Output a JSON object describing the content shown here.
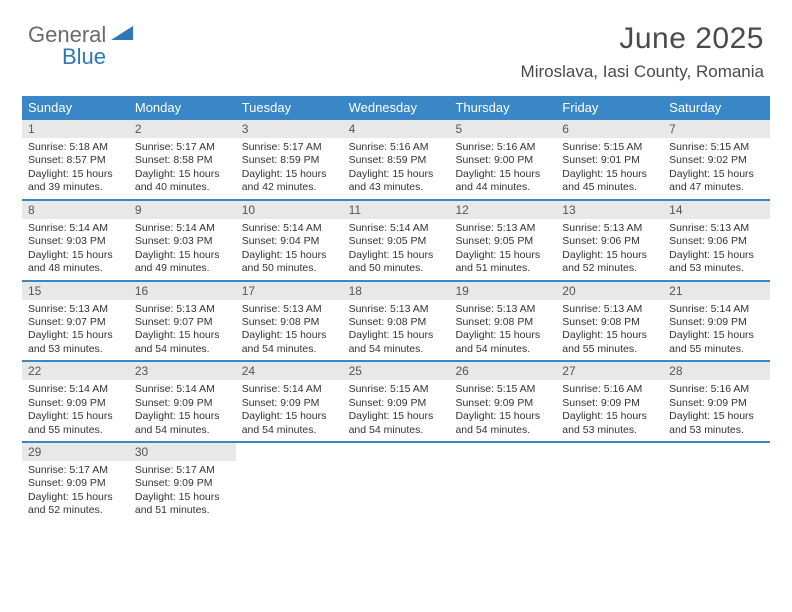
{
  "brand": {
    "word1": "General",
    "word2": "Blue"
  },
  "title": "June 2025",
  "location": "Miroslava, Iasi County, Romania",
  "colors": {
    "header_bar": "#3a87c8",
    "header_text": "#ffffff",
    "daynum_bg": "#e8e8e8",
    "daynum_text": "#555555",
    "body_text": "#333333",
    "rule": "#3a87c8",
    "logo_gray": "#6b6b6b",
    "logo_blue": "#2f77bb",
    "title_color": "#4a4a4a",
    "page_bg": "#ffffff"
  },
  "fonts": {
    "title_size_pt": 22,
    "location_size_pt": 13,
    "weekday_size_pt": 10,
    "daynum_size_pt": 9,
    "body_size_pt": 8
  },
  "weekdays": [
    "Sunday",
    "Monday",
    "Tuesday",
    "Wednesday",
    "Thursday",
    "Friday",
    "Saturday"
  ],
  "weeks": [
    [
      {
        "n": "1",
        "sr": "5:18 AM",
        "ss": "8:57 PM",
        "dl": "15 hours and 39 minutes."
      },
      {
        "n": "2",
        "sr": "5:17 AM",
        "ss": "8:58 PM",
        "dl": "15 hours and 40 minutes."
      },
      {
        "n": "3",
        "sr": "5:17 AM",
        "ss": "8:59 PM",
        "dl": "15 hours and 42 minutes."
      },
      {
        "n": "4",
        "sr": "5:16 AM",
        "ss": "8:59 PM",
        "dl": "15 hours and 43 minutes."
      },
      {
        "n": "5",
        "sr": "5:16 AM",
        "ss": "9:00 PM",
        "dl": "15 hours and 44 minutes."
      },
      {
        "n": "6",
        "sr": "5:15 AM",
        "ss": "9:01 PM",
        "dl": "15 hours and 45 minutes."
      },
      {
        "n": "7",
        "sr": "5:15 AM",
        "ss": "9:02 PM",
        "dl": "15 hours and 47 minutes."
      }
    ],
    [
      {
        "n": "8",
        "sr": "5:14 AM",
        "ss": "9:03 PM",
        "dl": "15 hours and 48 minutes."
      },
      {
        "n": "9",
        "sr": "5:14 AM",
        "ss": "9:03 PM",
        "dl": "15 hours and 49 minutes."
      },
      {
        "n": "10",
        "sr": "5:14 AM",
        "ss": "9:04 PM",
        "dl": "15 hours and 50 minutes."
      },
      {
        "n": "11",
        "sr": "5:14 AM",
        "ss": "9:05 PM",
        "dl": "15 hours and 50 minutes."
      },
      {
        "n": "12",
        "sr": "5:13 AM",
        "ss": "9:05 PM",
        "dl": "15 hours and 51 minutes."
      },
      {
        "n": "13",
        "sr": "5:13 AM",
        "ss": "9:06 PM",
        "dl": "15 hours and 52 minutes."
      },
      {
        "n": "14",
        "sr": "5:13 AM",
        "ss": "9:06 PM",
        "dl": "15 hours and 53 minutes."
      }
    ],
    [
      {
        "n": "15",
        "sr": "5:13 AM",
        "ss": "9:07 PM",
        "dl": "15 hours and 53 minutes."
      },
      {
        "n": "16",
        "sr": "5:13 AM",
        "ss": "9:07 PM",
        "dl": "15 hours and 54 minutes."
      },
      {
        "n": "17",
        "sr": "5:13 AM",
        "ss": "9:08 PM",
        "dl": "15 hours and 54 minutes."
      },
      {
        "n": "18",
        "sr": "5:13 AM",
        "ss": "9:08 PM",
        "dl": "15 hours and 54 minutes."
      },
      {
        "n": "19",
        "sr": "5:13 AM",
        "ss": "9:08 PM",
        "dl": "15 hours and 54 minutes."
      },
      {
        "n": "20",
        "sr": "5:13 AM",
        "ss": "9:08 PM",
        "dl": "15 hours and 55 minutes."
      },
      {
        "n": "21",
        "sr": "5:14 AM",
        "ss": "9:09 PM",
        "dl": "15 hours and 55 minutes."
      }
    ],
    [
      {
        "n": "22",
        "sr": "5:14 AM",
        "ss": "9:09 PM",
        "dl": "15 hours and 55 minutes."
      },
      {
        "n": "23",
        "sr": "5:14 AM",
        "ss": "9:09 PM",
        "dl": "15 hours and 54 minutes."
      },
      {
        "n": "24",
        "sr": "5:14 AM",
        "ss": "9:09 PM",
        "dl": "15 hours and 54 minutes."
      },
      {
        "n": "25",
        "sr": "5:15 AM",
        "ss": "9:09 PM",
        "dl": "15 hours and 54 minutes."
      },
      {
        "n": "26",
        "sr": "5:15 AM",
        "ss": "9:09 PM",
        "dl": "15 hours and 54 minutes."
      },
      {
        "n": "27",
        "sr": "5:16 AM",
        "ss": "9:09 PM",
        "dl": "15 hours and 53 minutes."
      },
      {
        "n": "28",
        "sr": "5:16 AM",
        "ss": "9:09 PM",
        "dl": "15 hours and 53 minutes."
      }
    ],
    [
      {
        "n": "29",
        "sr": "5:17 AM",
        "ss": "9:09 PM",
        "dl": "15 hours and 52 minutes."
      },
      {
        "n": "30",
        "sr": "5:17 AM",
        "ss": "9:09 PM",
        "dl": "15 hours and 51 minutes."
      },
      null,
      null,
      null,
      null,
      null
    ]
  ],
  "labels": {
    "sunrise": "Sunrise:",
    "sunset": "Sunset:",
    "daylight": "Daylight:"
  }
}
